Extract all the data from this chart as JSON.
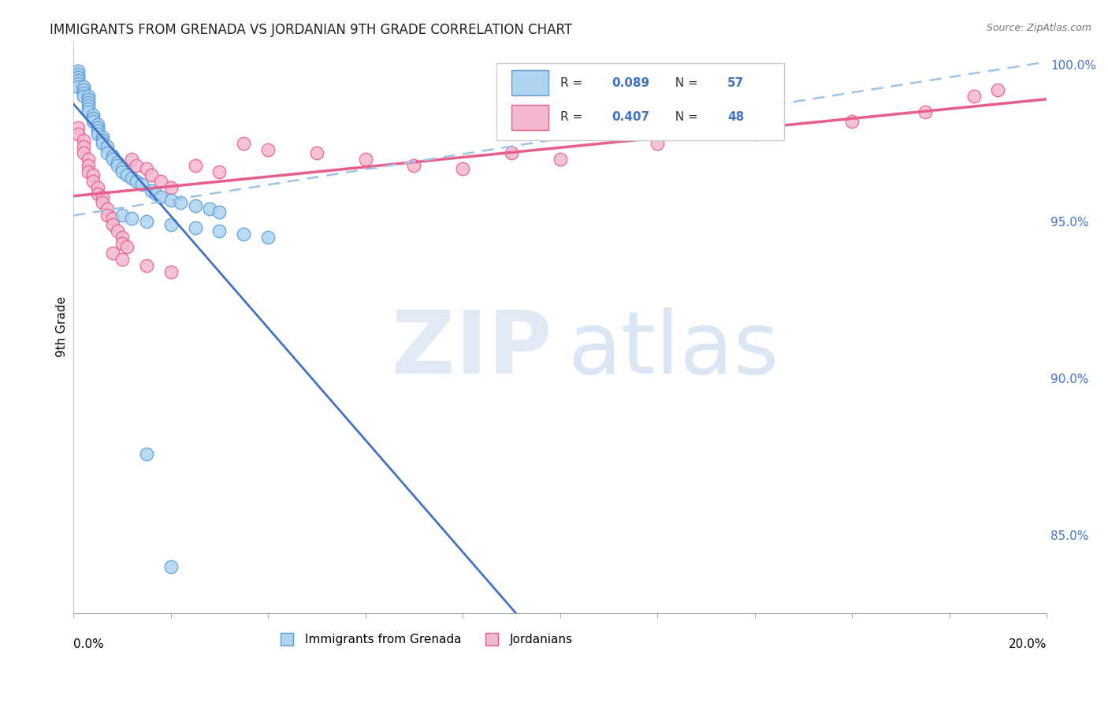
{
  "title": "IMMIGRANTS FROM GRENADA VS JORDANIAN 9TH GRADE CORRELATION CHART",
  "source": "Source: ZipAtlas.com",
  "ylabel": "9th Grade",
  "x_min": 0.0,
  "x_max": 0.2,
  "y_min": 0.825,
  "y_max": 1.008,
  "yticks": [
    0.85,
    0.9,
    0.95,
    1.0
  ],
  "ytick_labels": [
    "85.0%",
    "90.0%",
    "95.0%",
    "100.0%"
  ],
  "grid_color": "#cccccc",
  "grid_style": "--",
  "background_color": "#ffffff",
  "blue_R": "0.089",
  "blue_N": "57",
  "pink_R": "0.407",
  "pink_N": "48",
  "blue_face": "#aed4f0",
  "blue_edge": "#5b9bd5",
  "pink_face": "#f4b8d0",
  "pink_edge": "#e85d8a",
  "blue_line_color": "#4472c4",
  "blue_dash_color": "#9dc3e6",
  "pink_line_color": "#e85d8a",
  "legend_value_color": "#4472c4",
  "blue_label": "Immigrants from Grenada",
  "pink_label": "Jordanians",
  "watermark_zip": "#c8d8ec",
  "watermark_atlas": "#b0c8e8",
  "blue_x": [
    0.001,
    0.001,
    0.001,
    0.001,
    0.001,
    0.001,
    0.001,
    0.002,
    0.002,
    0.002,
    0.002,
    0.003,
    0.003,
    0.003,
    0.003,
    0.003,
    0.003,
    0.004,
    0.004,
    0.004,
    0.005,
    0.005,
    0.005,
    0.005,
    0.006,
    0.006,
    0.006,
    0.007,
    0.007,
    0.008,
    0.008,
    0.009,
    0.009,
    0.01,
    0.01,
    0.011,
    0.012,
    0.013,
    0.014,
    0.016,
    0.017,
    0.018,
    0.02,
    0.022,
    0.025,
    0.028,
    0.03,
    0.01,
    0.012,
    0.015,
    0.02,
    0.025,
    0.03,
    0.035,
    0.04,
    0.015,
    0.02
  ],
  "blue_y": [
    0.998,
    0.997,
    0.996,
    0.996,
    0.995,
    0.994,
    0.993,
    0.993,
    0.992,
    0.991,
    0.99,
    0.99,
    0.989,
    0.988,
    0.987,
    0.986,
    0.985,
    0.984,
    0.983,
    0.982,
    0.981,
    0.98,
    0.979,
    0.978,
    0.977,
    0.976,
    0.975,
    0.974,
    0.972,
    0.971,
    0.97,
    0.969,
    0.968,
    0.967,
    0.966,
    0.965,
    0.964,
    0.963,
    0.962,
    0.96,
    0.959,
    0.958,
    0.957,
    0.956,
    0.955,
    0.954,
    0.953,
    0.952,
    0.951,
    0.95,
    0.949,
    0.948,
    0.947,
    0.946,
    0.945,
    0.876,
    0.84
  ],
  "pink_x": [
    0.001,
    0.001,
    0.002,
    0.002,
    0.002,
    0.003,
    0.003,
    0.003,
    0.004,
    0.004,
    0.005,
    0.005,
    0.006,
    0.006,
    0.007,
    0.007,
    0.008,
    0.008,
    0.009,
    0.01,
    0.01,
    0.011,
    0.012,
    0.013,
    0.015,
    0.016,
    0.018,
    0.02,
    0.025,
    0.03,
    0.035,
    0.04,
    0.05,
    0.06,
    0.07,
    0.08,
    0.09,
    0.1,
    0.12,
    0.14,
    0.16,
    0.175,
    0.185,
    0.19,
    0.008,
    0.01,
    0.015,
    0.02
  ],
  "pink_y": [
    0.98,
    0.978,
    0.976,
    0.974,
    0.972,
    0.97,
    0.968,
    0.966,
    0.965,
    0.963,
    0.961,
    0.959,
    0.958,
    0.956,
    0.954,
    0.952,
    0.951,
    0.949,
    0.947,
    0.945,
    0.943,
    0.942,
    0.97,
    0.968,
    0.967,
    0.965,
    0.963,
    0.961,
    0.968,
    0.966,
    0.975,
    0.973,
    0.972,
    0.97,
    0.968,
    0.967,
    0.972,
    0.97,
    0.975,
    0.978,
    0.982,
    0.985,
    0.99,
    0.992,
    0.94,
    0.938,
    0.936,
    0.934
  ]
}
